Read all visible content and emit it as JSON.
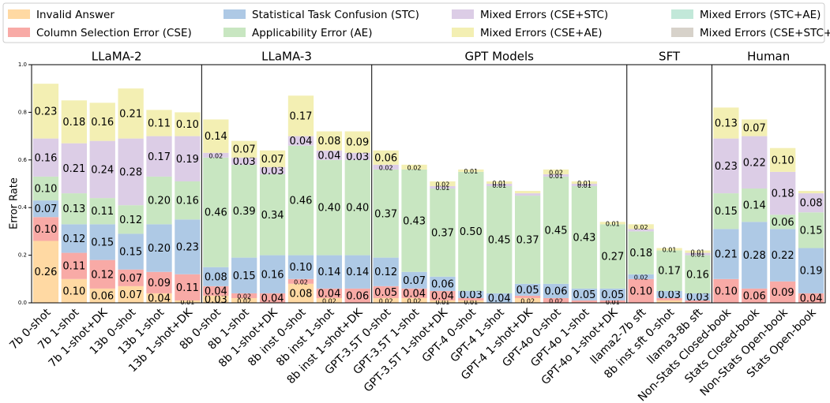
{
  "chart_data": {
    "type": "bar",
    "stacked": true,
    "ylabel": "Error Rate",
    "ylim": [
      0,
      1
    ],
    "yticks": [
      {
        "value": 0,
        "label": "0.0"
      },
      0.2,
      0.4,
      0.6,
      0.8,
      {
        "value": 1,
        "label": "1.0"
      }
    ],
    "groups": [
      {
        "name": "LLaMA-2",
        "categories": [
          "7b 0-shot",
          "7b 1-shot",
          "7b 1-shot+DK",
          "13b 0-shot",
          "13b 1-shot",
          "13b 1-shot+DK"
        ]
      },
      {
        "name": "LLaMA-3",
        "categories": [
          "8b 0-shot",
          "8b 1-shot",
          "8b 1-shot+DK",
          "8b inst 0-shot",
          "8b inst 1-shot",
          "8b inst 1-shot+DK"
        ]
      },
      {
        "name": "GPT Models",
        "categories": [
          "GPT-3.5T 0-shot",
          "GPT-3.5T 1-shot",
          "GPT-3.5T 1-shot+DK",
          "GPT-4 0-shot",
          "GPT-4 1-shot",
          "GPT-4 1-shot+DK",
          "GPT-4o 0-shot",
          "GPT-4o 1-shot",
          "GPT-4o 1-shot+DK"
        ]
      },
      {
        "name": "SFT",
        "categories": [
          "llama2-7b sft",
          "8b inst sft 0-shot",
          "llama3-8b sft"
        ]
      },
      {
        "name": "Human",
        "categories": [
          "Non-Stats Closed-book",
          "Stats Closed-book",
          "Non-Stats Open-book",
          "Stats Open-book"
        ]
      }
    ],
    "series": [
      {
        "name": "Invalid Answer",
        "color": "#ffd9a3",
        "values": [
          0.26,
          0.1,
          0.06,
          0.07,
          0.04,
          0.01,
          0.03,
          0.02,
          0,
          0.08,
          0.02,
          0,
          0.02,
          0.02,
          0.01,
          0.01,
          0,
          0.02,
          0,
          0,
          0,
          0,
          0.01,
          0,
          0,
          0,
          0,
          0
        ],
        "value_labels": [
          "0.26",
          "0.10",
          "0.06",
          "0.07",
          "0.04",
          "0.01",
          "0.03",
          "0.02",
          null,
          "0.08",
          "0.02",
          null,
          "0.02",
          "0.02",
          "0.01",
          "0.01",
          null,
          "0.02",
          null,
          null,
          null,
          null,
          null,
          null,
          null,
          null,
          null,
          null
        ]
      },
      {
        "name": "Column Selection Error (CSE)",
        "color": "#f8aaa6",
        "values": [
          0.1,
          0.11,
          0.12,
          0.07,
          0.09,
          0.11,
          0.04,
          0.02,
          0.04,
          0.02,
          0.04,
          0.06,
          0.05,
          0.04,
          0.04,
          0.01,
          0,
          0.01,
          0.02,
          0.01,
          0.01,
          0.1,
          0.01,
          0.01,
          0.1,
          0.06,
          0.09,
          0.04
        ],
        "value_labels": [
          "0.10",
          "0.11",
          "0.12",
          "0.07",
          "0.09",
          "0.11",
          "0.04",
          "0.02",
          "0.04",
          "0.02",
          "0.04",
          "0.06",
          "0.05",
          "0.04",
          "0.04",
          null,
          null,
          null,
          "0.02",
          null,
          "0.01",
          "0.10",
          null,
          null,
          "0.10",
          "0.06",
          "0.09",
          "0.04"
        ]
      },
      {
        "name": "Statistical Task Confusion (STC)",
        "color": "#aec9e5",
        "values": [
          0.07,
          0.12,
          0.15,
          0.15,
          0.2,
          0.23,
          0.08,
          0.15,
          0.16,
          0.1,
          0.14,
          0.14,
          0.12,
          0.07,
          0.06,
          0.03,
          0.04,
          0.05,
          0.06,
          0.05,
          0.05,
          0.02,
          0.03,
          0.03,
          0.21,
          0.28,
          0.22,
          0.19
        ],
        "value_labels": [
          "0.07",
          "0.12",
          "0.15",
          "0.15",
          "0.20",
          "0.23",
          "0.08",
          "0.15",
          "0.16",
          "0.10",
          "0.14",
          "0.14",
          "0.12",
          "0.07",
          "0.06",
          "0.03",
          "0.04",
          "0.05",
          "0.06",
          "0.05",
          "0.05",
          "0.02",
          "0.03",
          "0.03",
          "0.21",
          "0.28",
          "0.22",
          "0.19"
        ]
      },
      {
        "name": "Applicability Error (AE)",
        "color": "#c8e6c1",
        "values": [
          0.1,
          0.13,
          0.11,
          0.12,
          0.2,
          0.16,
          0.46,
          0.39,
          0.34,
          0.46,
          0.4,
          0.4,
          0.37,
          0.43,
          0.37,
          0.5,
          0.45,
          0.37,
          0.45,
          0.43,
          0.27,
          0.18,
          0.17,
          0.16,
          0.15,
          0.14,
          0.06,
          0.15
        ],
        "value_labels": [
          "0.10",
          "0.13",
          "0.11",
          "0.12",
          "0.20",
          "0.16",
          "0.46",
          "0.39",
          "0.34",
          "0.46",
          "0.40",
          "0.40",
          "0.37",
          "0.43",
          "0.37",
          "0.50",
          "0.45",
          "0.37",
          "0.45",
          "0.43",
          "0.27",
          "0.18",
          "0.17",
          "0.16",
          "0.15",
          "0.14",
          "0.06",
          "0.15"
        ]
      },
      {
        "name": "Mixed Errors (CSE+STC)",
        "color": "#dccde6",
        "values": [
          0.16,
          0.21,
          0.24,
          0.28,
          0.17,
          0.19,
          0.02,
          0.03,
          0.03,
          0.04,
          0.04,
          0.03,
          0.02,
          0,
          0.01,
          0,
          0.01,
          0.01,
          0.01,
          0.01,
          0,
          0.01,
          0,
          0.01,
          0.23,
          0.22,
          0.18,
          0.08
        ],
        "value_labels": [
          "0.16",
          "0.21",
          "0.24",
          "0.28",
          "0.17",
          "0.19",
          "0.02",
          "0.03",
          "0.03",
          "0.04",
          "0.04",
          "0.03",
          "0.02",
          null,
          "0.01",
          null,
          "0.01",
          null,
          "0.01",
          "0.01",
          null,
          null,
          null,
          "0.01",
          "0.23",
          "0.22",
          "0.18",
          "0.08"
        ]
      },
      {
        "name": "Mixed Errors (CSE+AE)",
        "color": "#f3efb3",
        "values": [
          0.23,
          0.18,
          0.16,
          0.21,
          0.11,
          0.1,
          0.14,
          0.07,
          0.07,
          0.17,
          0.08,
          0.09,
          0.06,
          0.02,
          0.02,
          0.01,
          0.01,
          0.01,
          0.02,
          0.01,
          0.01,
          0.02,
          0.01,
          0.01,
          0.13,
          0.07,
          0.1,
          0.01
        ],
        "value_labels": [
          "0.23",
          "0.18",
          "0.16",
          "0.21",
          "0.11",
          "0.10",
          "0.14",
          "0.07",
          "0.07",
          "0.17",
          "0.08",
          "0.09",
          "0.06",
          "0.02",
          "0.02",
          "0.01",
          "0.01",
          null,
          "0.02",
          "0.01",
          "0.01",
          "0.02",
          "0.01",
          "0.01",
          "0.13",
          "0.07",
          "0.10",
          null
        ]
      },
      {
        "name": "Mixed Errors (STC+AE)",
        "color": "#c2e8d9",
        "values": [
          0,
          0,
          0,
          0,
          0,
          0,
          0,
          0,
          0,
          0,
          0,
          0,
          0,
          0,
          0,
          0,
          0,
          0,
          0,
          0,
          0,
          0,
          0,
          0,
          0,
          0,
          0,
          0
        ]
      },
      {
        "name": "Mixed Errors (CSE+STC+AE)",
        "color": "#d7d2ca",
        "values": [
          0,
          0,
          0,
          0,
          0,
          0,
          0,
          0,
          0,
          0,
          0,
          0,
          0,
          0,
          0,
          0,
          0,
          0,
          0,
          0,
          0,
          0,
          0,
          0,
          0,
          0,
          0,
          0
        ]
      }
    ]
  }
}
